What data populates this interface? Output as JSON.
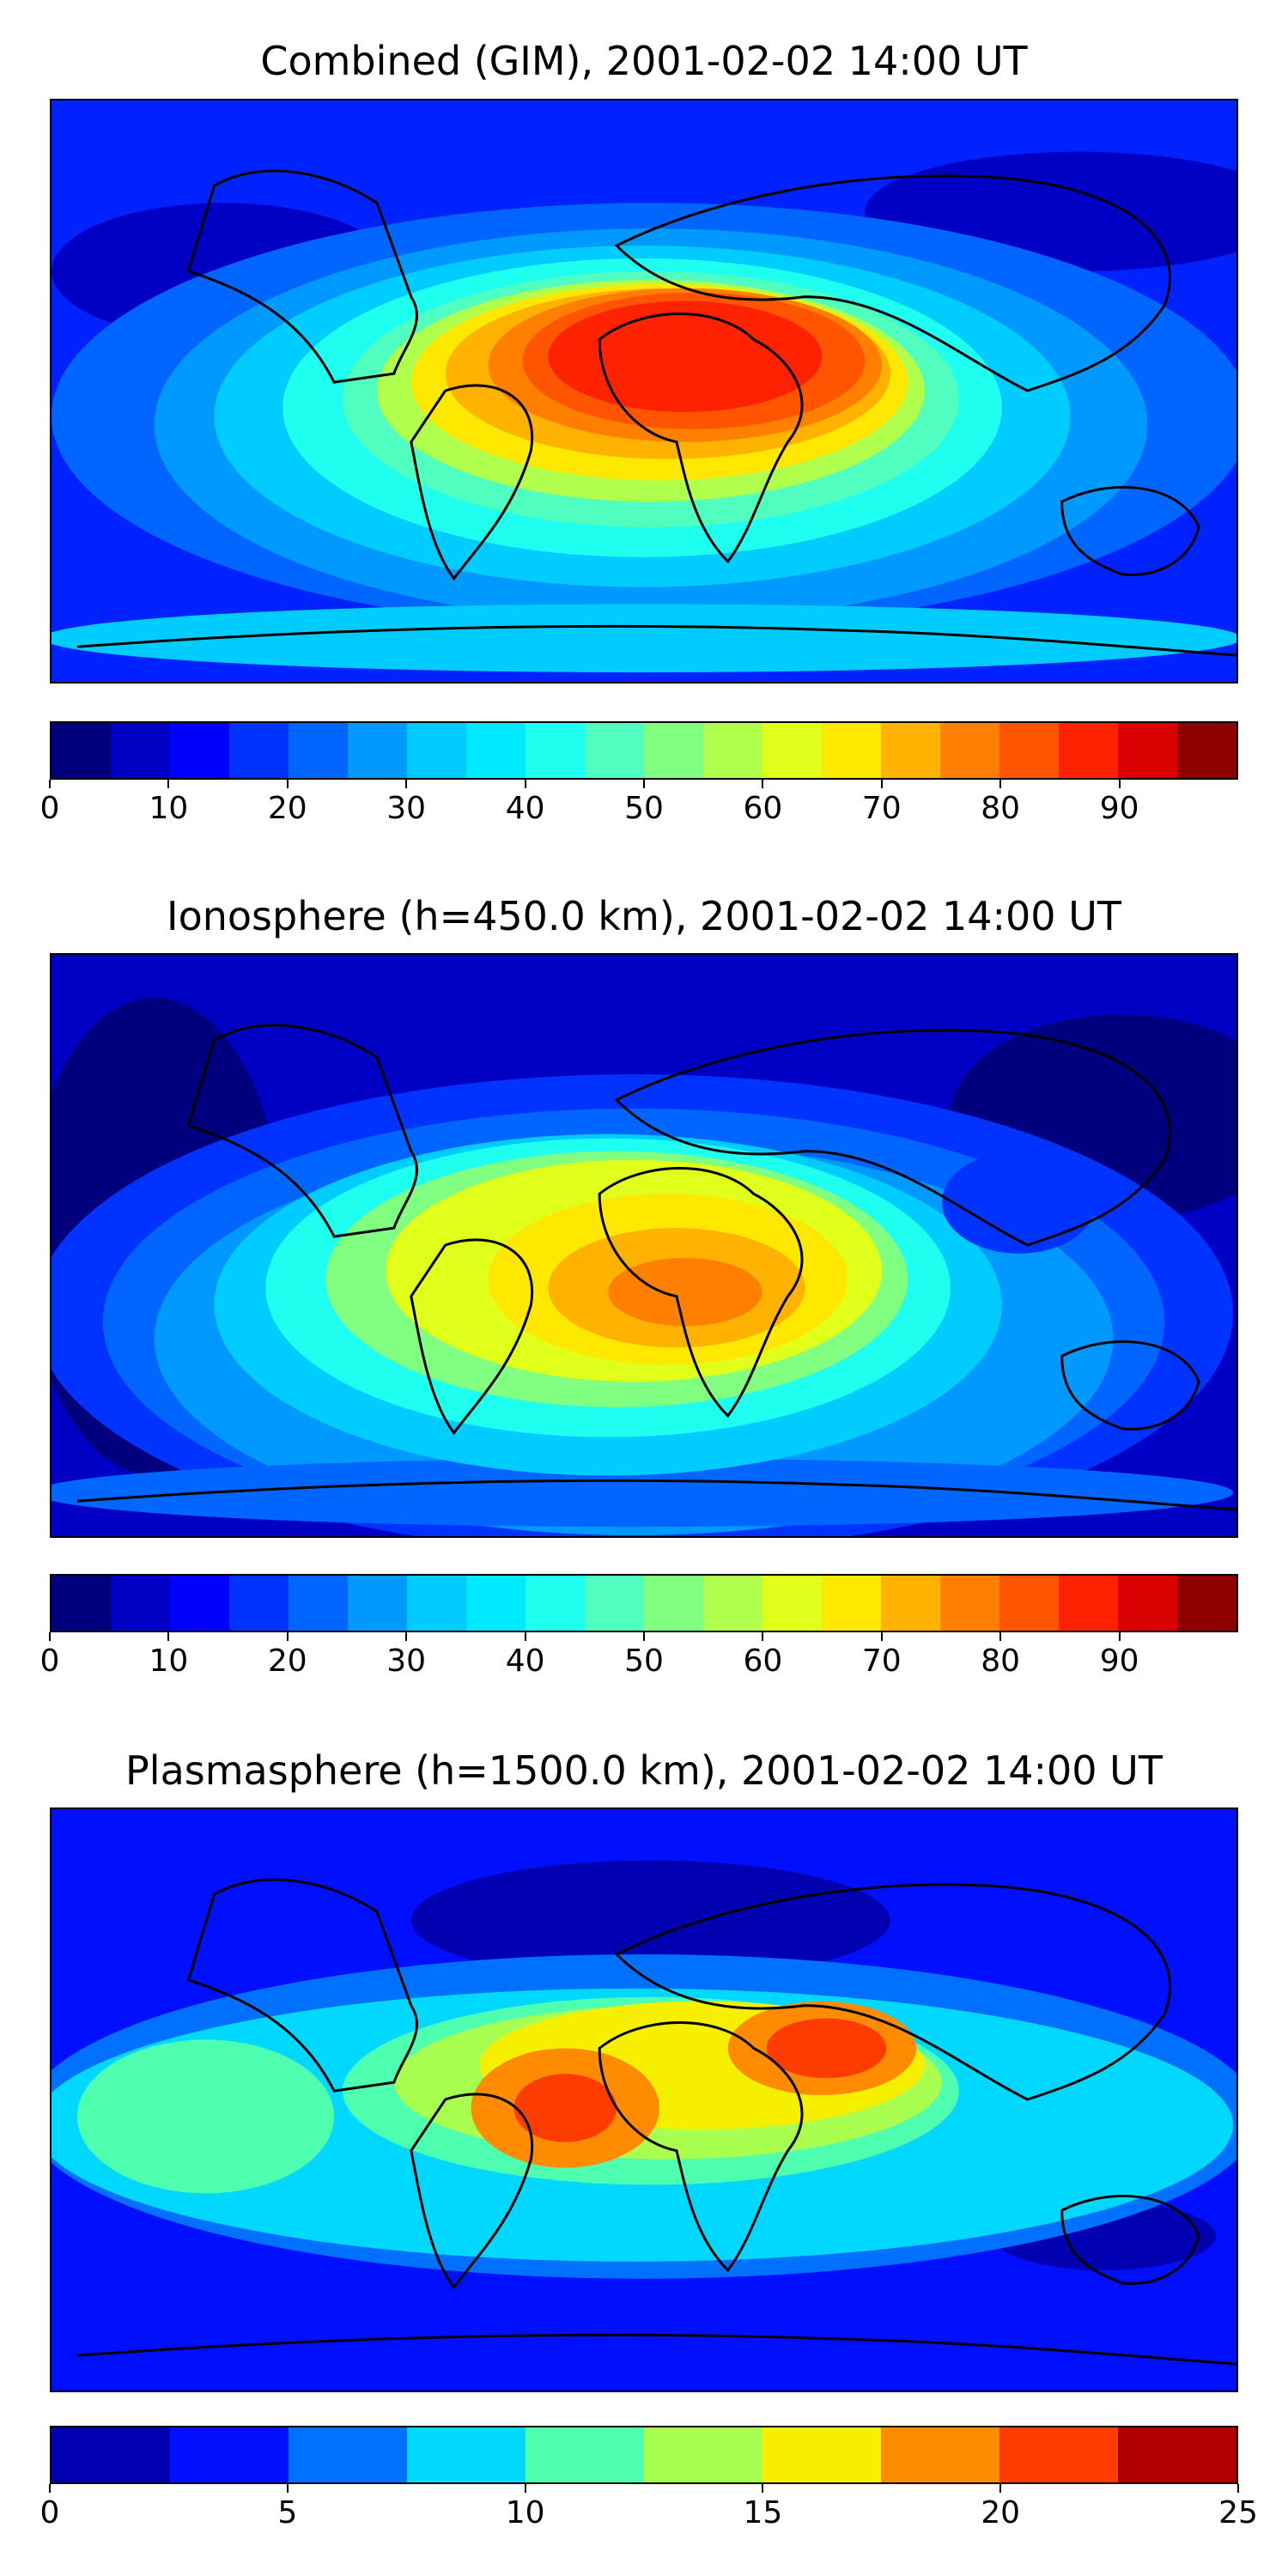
{
  "panels": [
    {
      "title": "Combined (GIM), 2001-02-02 14:00 UT",
      "colorbar": {
        "colors": [
          "#00007f",
          "#0000c4",
          "#0000ff",
          "#0033ff",
          "#0066ff",
          "#0099ff",
          "#00ccff",
          "#00eaff",
          "#1efff0",
          "#50ffbf",
          "#80ff80",
          "#b0ff4d",
          "#e0ff1a",
          "#ffe800",
          "#ffb300",
          "#ff8000",
          "#ff5500",
          "#ff2200",
          "#d80000",
          "#8f0000"
        ],
        "ticks": [
          "0",
          "10",
          "20",
          "30",
          "40",
          "50",
          "60",
          "70",
          "80",
          "90"
        ]
      }
    },
    {
      "title": "Ionosphere  (h=450.0 km), 2001-02-02 14:00 UT",
      "colorbar": {
        "colors": [
          "#00007f",
          "#0000c4",
          "#0000ff",
          "#0033ff",
          "#0066ff",
          "#0099ff",
          "#00ccff",
          "#00eaff",
          "#1efff0",
          "#50ffbf",
          "#80ff80",
          "#b0ff4d",
          "#e0ff1a",
          "#ffe800",
          "#ffb300",
          "#ff8000",
          "#ff5500",
          "#ff2200",
          "#d80000",
          "#8f0000"
        ],
        "ticks": [
          "0",
          "10",
          "20",
          "30",
          "40",
          "50",
          "60",
          "70",
          "80",
          "90"
        ]
      }
    },
    {
      "title": "Plasmasphere (h=1500.0 km), 2001-02-02 14:00 UT",
      "colorbar": {
        "colors": [
          "#0000b0",
          "#0010ff",
          "#0070ff",
          "#00d8ff",
          "#4effb0",
          "#a8ff50",
          "#f6f000",
          "#ff8c00",
          "#ff3c00",
          "#b00000"
        ],
        "ticks": [
          "0",
          "5",
          "10",
          "15",
          "20",
          "25"
        ]
      }
    }
  ]
}
